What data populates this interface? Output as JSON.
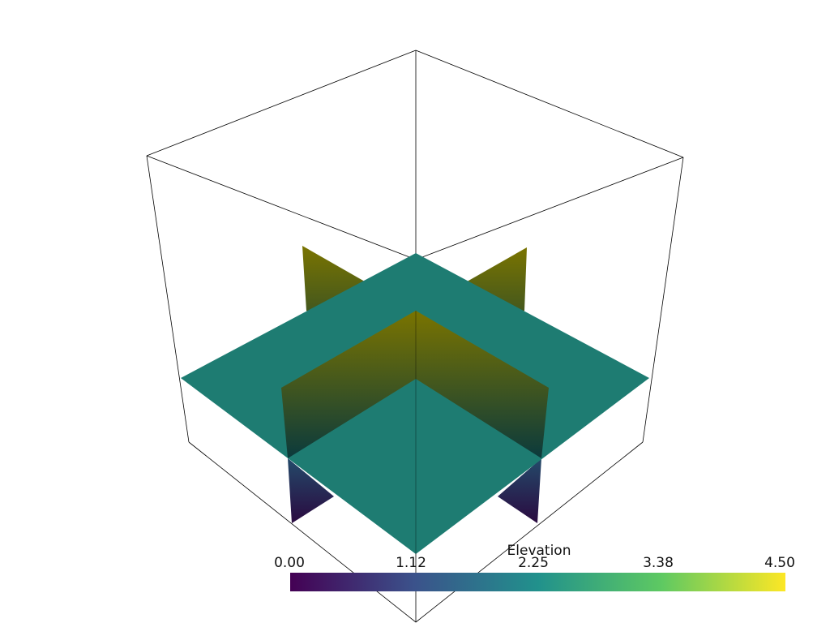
{
  "scalar_bar": {
    "title": "Elevation",
    "ticks": [
      "0.00",
      "1.12",
      "2.25",
      "3.38",
      "4.50"
    ],
    "range": [
      0,
      4.5
    ],
    "colormap": "viridis",
    "colors": [
      "#440154",
      "#3b528b",
      "#21918c",
      "#5ec962",
      "#fde725"
    ]
  },
  "scene": {
    "plane_color": "#1e7c72",
    "slice_gradient_top": "#7a7400",
    "slice_gradient_bottom": "#0b3a3c",
    "lower_slice_bottom": "#2a0a40",
    "outline_color": "#000000"
  }
}
